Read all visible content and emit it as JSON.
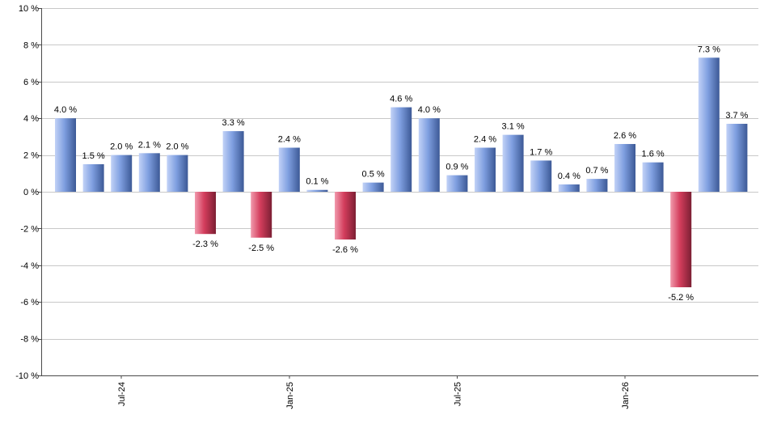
{
  "colors": {
    "positive_light": "#c2d2f7",
    "positive_mid": "#7f9fe0",
    "positive_dark": "#3c5996",
    "negative_light": "#f19aad",
    "negative_mid": "#d33d5c",
    "negative_dark": "#7c1f33",
    "grid": "#c8c8c8",
    "axis": "#4a4a4a"
  },
  "chart_data": {
    "type": "bar",
    "title": "",
    "xlabel": "",
    "ylabel": "",
    "ylim": [
      -10,
      10
    ],
    "y_ticks": [
      10,
      8,
      6,
      4,
      2,
      0,
      -2,
      -4,
      -6,
      -8,
      -10
    ],
    "y_tick_labels": [
      "10 %",
      "8 %",
      "6 %",
      "4 %",
      "2 %",
      "0 %",
      "-2 %",
      "-4 %",
      "-6 %",
      "-8 %",
      "-10 %"
    ],
    "x_tick_labels": [
      {
        "label": "Jul-24",
        "index": 2
      },
      {
        "label": "Jan-25",
        "index": 8
      },
      {
        "label": "Jul-25",
        "index": 14
      },
      {
        "label": "Jan-26",
        "index": 20
      }
    ],
    "grid": true,
    "legend": "none",
    "values": [
      4.0,
      1.5,
      2.0,
      2.1,
      2.0,
      -2.3,
      3.3,
      -2.5,
      2.4,
      0.1,
      -2.6,
      0.5,
      4.6,
      4.0,
      0.9,
      2.4,
      3.1,
      1.7,
      0.4,
      0.7,
      2.6,
      1.6,
      -5.2,
      7.3,
      3.7
    ],
    "value_labels": [
      "4.0 %",
      "1.5 %",
      "2.0 %",
      "2.1 %",
      "2.0 %",
      "-2.3 %",
      "3.3 %",
      "-2.5 %",
      "2.4 %",
      "0.1 %",
      "-2.6 %",
      "0.5 %",
      "4.6 %",
      "4.0 %",
      "0.9 %",
      "2.4 %",
      "3.1 %",
      "1.7 %",
      "0.4 %",
      "0.7 %",
      "2.6 %",
      "1.6 %",
      "-5.2 %",
      "7.3 %",
      "3.7 %"
    ]
  }
}
